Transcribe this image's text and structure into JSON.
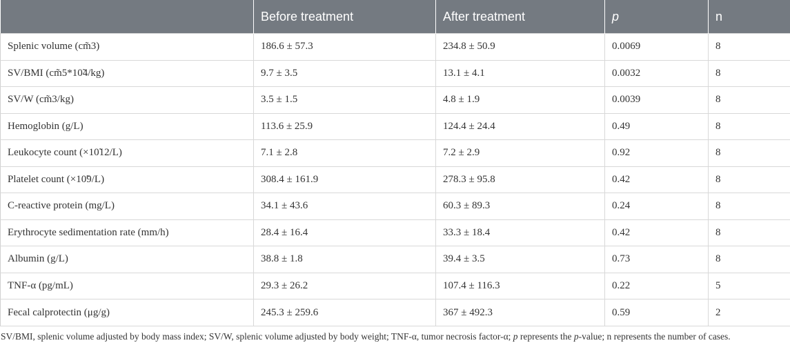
{
  "table": {
    "headers": [
      "",
      "Before treatment",
      "After treatment",
      "p",
      "n"
    ],
    "rows": [
      [
        "Splenic volume (cm̃3)",
        "186.6 ± 57.3",
        "234.8 ± 50.9",
        "0.0069",
        "8"
      ],
      [
        "SV/BMI (cm̃5*10̃4/kg)",
        "9.7 ± 3.5",
        "13.1 ± 4.1",
        "0.0032",
        "8"
      ],
      [
        "SV/W (cm̃3/kg)",
        "3.5 ± 1.5",
        "4.8 ± 1.9",
        "0.0039",
        "8"
      ],
      [
        "Hemoglobin (g/L)",
        "113.6 ± 25.9",
        "124.4 ± 24.4",
        "0.49",
        "8"
      ],
      [
        "Leukocyte count (×10̃12/L)",
        "7.1 ± 2.8",
        "7.2 ± 2.9",
        "0.92",
        "8"
      ],
      [
        "Platelet count (×10̃9/L)",
        "308.4 ± 161.9",
        "278.3 ± 95.8",
        "0.42",
        "8"
      ],
      [
        "C-reactive protein (mg/L)",
        "34.1 ± 43.6",
        "60.3 ± 89.3",
        "0.24",
        "8"
      ],
      [
        "Erythrocyte sedimentation rate (mm/h)",
        "28.4 ± 16.4",
        "33.3 ± 18.4",
        "0.42",
        "8"
      ],
      [
        "Albumin (g/L)",
        "38.8 ± 1.8",
        "39.4 ± 3.5",
        "0.73",
        "8"
      ],
      [
        "TNF-α (pg/mL)",
        "29.3 ± 26.2",
        "107.4 ± 116.3",
        "0.22",
        "5"
      ],
      [
        "Fecal calprotectin (μg/g)",
        "245.3 ± 259.6",
        "367 ± 492.3",
        "0.59",
        "2"
      ]
    ]
  },
  "footnote": {
    "part1": "SV/BMI, splenic volume adjusted by body mass index; SV/W, splenic volume adjusted by body weight; TNF-α, tumor necrosis factor-α; ",
    "p_italic": "p",
    "part2": " represents the ",
    "p_italic2": "p",
    "part3": "-value; n represents the number of cases."
  }
}
